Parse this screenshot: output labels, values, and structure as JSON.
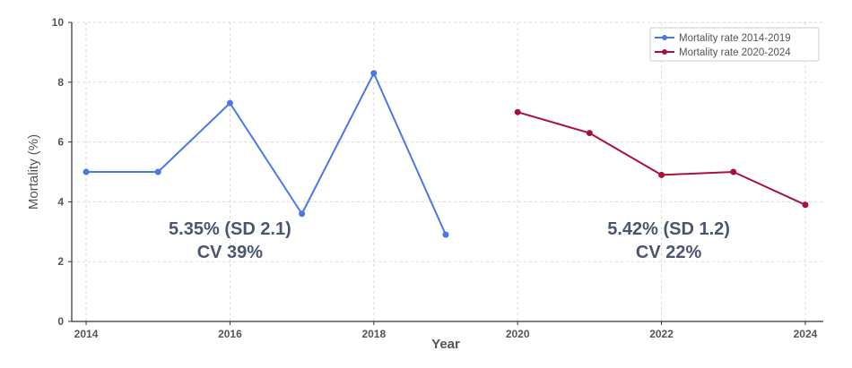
{
  "chart_data": {
    "type": "line",
    "xlabel": "Year",
    "ylabel": "Mortality (%)",
    "xlim": [
      2013.8,
      2024.25
    ],
    "ylim": [
      0,
      10
    ],
    "x_ticks": [
      2014,
      2016,
      2018,
      2020,
      2022,
      2024
    ],
    "y_ticks": [
      0,
      2,
      4,
      6,
      8,
      10
    ],
    "grid": true,
    "legend_position": "top-right",
    "series": [
      {
        "name": "Mortality rate 2014-2019",
        "color": "#4a78e8",
        "x": [
          2014,
          2015,
          2016,
          2017,
          2018,
          2019
        ],
        "y": [
          5.0,
          5.0,
          7.3,
          3.6,
          8.3,
          2.9
        ]
      },
      {
        "name": "Mortality rate 2020-2024",
        "color": "#a8123a",
        "x": [
          2020,
          2021,
          2022,
          2023,
          2024
        ],
        "y": [
          7.0,
          6.3,
          4.9,
          5.0,
          3.9
        ]
      }
    ],
    "annotations": [
      {
        "lines": [
          "5.35% (SD 2.1)",
          "CV 39%"
        ],
        "x": 2016,
        "y": 2.9
      },
      {
        "lines": [
          "5.42% (SD 1.2)",
          "CV 22%"
        ],
        "x": 2022.1,
        "y": 2.9
      }
    ]
  }
}
